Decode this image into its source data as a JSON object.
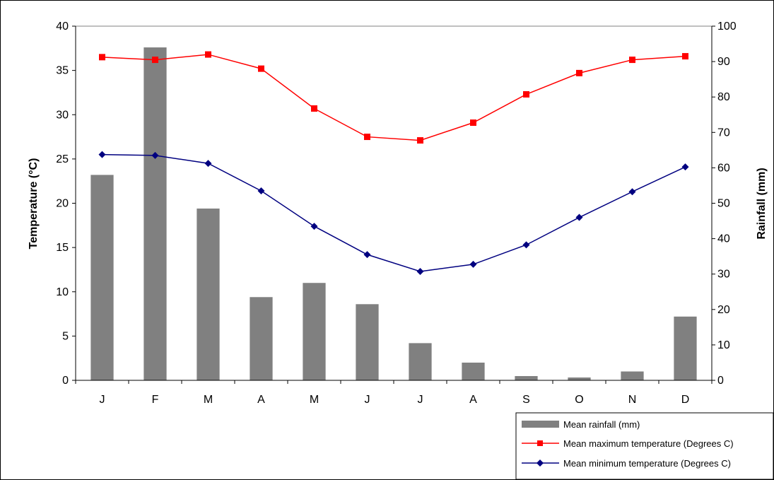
{
  "chart_data": {
    "type": "bar+line",
    "categories": [
      "J",
      "F",
      "M",
      "A",
      "M",
      "J",
      "J",
      "A",
      "S",
      "O",
      "N",
      "D"
    ],
    "left_axis": {
      "label": "Temperature (°C)",
      "range": [
        0,
        40
      ],
      "ticks": [
        0,
        5,
        10,
        15,
        20,
        25,
        30,
        35,
        40
      ]
    },
    "right_axis": {
      "label": "Rainfall (mm)",
      "range": [
        0,
        100
      ],
      "ticks": [
        0,
        10,
        20,
        30,
        40,
        50,
        60,
        70,
        80,
        90,
        100
      ]
    },
    "series": [
      {
        "name": "Mean rainfall (mm)",
        "type": "bar",
        "axis": "right",
        "color": "#808080",
        "values": [
          58,
          94,
          48.5,
          23.5,
          27.5,
          21.5,
          10.5,
          5,
          1.2,
          0.8,
          2.5,
          18
        ]
      },
      {
        "name": "Mean maximum temperature (Degrees C)",
        "type": "line",
        "axis": "left",
        "color": "#ff0000",
        "marker": "square",
        "values": [
          36.5,
          36.2,
          36.8,
          35.2,
          30.7,
          27.5,
          27.1,
          29.1,
          32.3,
          34.7,
          36.2,
          36.6
        ]
      },
      {
        "name": "Mean minimum temperature (Degrees C)",
        "type": "line",
        "axis": "left",
        "color": "#000080",
        "marker": "diamond",
        "values": [
          25.5,
          25.4,
          24.5,
          21.4,
          17.4,
          14.2,
          12.3,
          13.1,
          15.3,
          18.4,
          21.3,
          24.1
        ]
      }
    ],
    "grid": false,
    "legend_position": "bottom-right"
  }
}
